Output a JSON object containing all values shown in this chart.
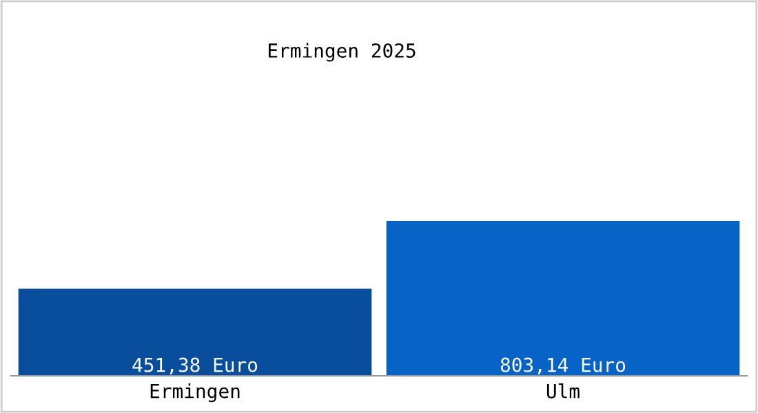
{
  "chart_data": {
    "type": "bar",
    "title": "Ermingen 2025",
    "categories": [
      "Ermingen",
      "Ulm"
    ],
    "values": [
      451.38,
      803.14
    ],
    "colors": [
      "#084e9c",
      "#0863c6"
    ],
    "value_labels": [
      "451,38 Euro",
      "803,14 Euro"
    ],
    "grid": false,
    "legend": false
  }
}
